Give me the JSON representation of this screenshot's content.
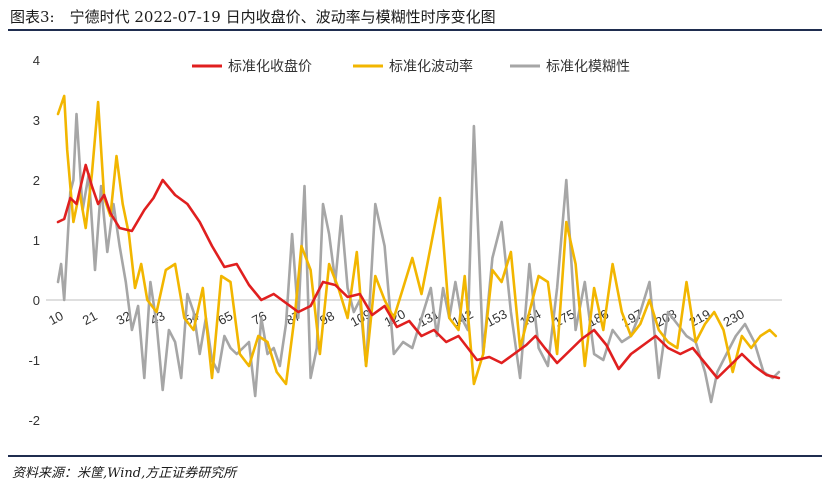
{
  "figure_title": "图表3:　宁德时代 2022-07-19 日内收盘价、波动率与模糊性时序变化图",
  "source": "资料来源：米筐,Wind,方正证券研究所",
  "chart_data": {
    "type": "line",
    "ylim": [
      -2,
      4
    ],
    "y_ticks": [
      -2,
      -1,
      0,
      1,
      2,
      3,
      4
    ],
    "x_start": 10,
    "x_end": 245,
    "x_ticks": [
      10,
      21,
      32,
      43,
      54,
      65,
      76,
      87,
      98,
      109,
      120,
      131,
      142,
      153,
      164,
      175,
      186,
      197,
      208,
      219,
      230
    ],
    "grid": false,
    "legend_position": "top",
    "series": [
      {
        "name": "标准化收盘价",
        "color": "#e01f1f",
        "keypoints": [
          [
            10,
            1.3
          ],
          [
            12,
            1.35
          ],
          [
            14,
            1.7
          ],
          [
            16,
            1.6
          ],
          [
            19,
            2.25
          ],
          [
            21,
            1.9
          ],
          [
            23,
            1.6
          ],
          [
            25,
            1.75
          ],
          [
            27,
            1.45
          ],
          [
            30,
            1.2
          ],
          [
            34,
            1.15
          ],
          [
            38,
            1.5
          ],
          [
            41,
            1.7
          ],
          [
            44,
            2.0
          ],
          [
            48,
            1.75
          ],
          [
            52,
            1.6
          ],
          [
            56,
            1.3
          ],
          [
            60,
            0.9
          ],
          [
            64,
            0.55
          ],
          [
            68,
            0.6
          ],
          [
            72,
            0.25
          ],
          [
            76,
            0.0
          ],
          [
            80,
            0.1
          ],
          [
            84,
            -0.05
          ],
          [
            88,
            -0.2
          ],
          [
            92,
            -0.1
          ],
          [
            96,
            0.3
          ],
          [
            100,
            0.25
          ],
          [
            104,
            0.05
          ],
          [
            108,
            0.1
          ],
          [
            112,
            -0.25
          ],
          [
            116,
            -0.1
          ],
          [
            120,
            -0.45
          ],
          [
            124,
            -0.35
          ],
          [
            128,
            -0.6
          ],
          [
            132,
            -0.5
          ],
          [
            136,
            -0.7
          ],
          [
            140,
            -0.6
          ],
          [
            143,
            -0.8
          ],
          [
            146,
            -1.0
          ],
          [
            150,
            -0.95
          ],
          [
            154,
            -1.05
          ],
          [
            158,
            -0.9
          ],
          [
            162,
            -0.75
          ],
          [
            165,
            -0.6
          ],
          [
            168,
            -0.8
          ],
          [
            172,
            -1.05
          ],
          [
            176,
            -0.85
          ],
          [
            180,
            -0.65
          ],
          [
            184,
            -0.5
          ],
          [
            188,
            -0.75
          ],
          [
            192,
            -1.15
          ],
          [
            196,
            -0.9
          ],
          [
            200,
            -0.75
          ],
          [
            204,
            -0.6
          ],
          [
            208,
            -0.8
          ],
          [
            212,
            -0.9
          ],
          [
            216,
            -0.8
          ],
          [
            220,
            -1.05
          ],
          [
            224,
            -1.3
          ],
          [
            228,
            -1.1
          ],
          [
            232,
            -0.9
          ],
          [
            236,
            -1.1
          ],
          [
            240,
            -1.25
          ],
          [
            244,
            -1.3
          ]
        ]
      },
      {
        "name": "标准化波动率",
        "color": "#f2b600",
        "keypoints": [
          [
            10,
            3.1
          ],
          [
            12,
            3.4
          ],
          [
            13,
            2.5
          ],
          [
            15,
            1.3
          ],
          [
            17,
            1.8
          ],
          [
            19,
            1.2
          ],
          [
            21,
            2.1
          ],
          [
            23,
            3.3
          ],
          [
            25,
            1.7
          ],
          [
            27,
            1.4
          ],
          [
            29,
            2.4
          ],
          [
            31,
            1.6
          ],
          [
            33,
            1.1
          ],
          [
            35,
            0.2
          ],
          [
            37,
            0.6
          ],
          [
            39,
            0.0
          ],
          [
            42,
            -0.2
          ],
          [
            45,
            0.5
          ],
          [
            48,
            0.6
          ],
          [
            51,
            -0.3
          ],
          [
            54,
            -0.5
          ],
          [
            57,
            0.2
          ],
          [
            60,
            -1.3
          ],
          [
            63,
            0.4
          ],
          [
            66,
            0.3
          ],
          [
            69,
            -0.9
          ],
          [
            72,
            -1.1
          ],
          [
            75,
            -0.6
          ],
          [
            78,
            -0.7
          ],
          [
            81,
            -1.2
          ],
          [
            84,
            -1.4
          ],
          [
            87,
            -0.2
          ],
          [
            89,
            0.9
          ],
          [
            92,
            0.5
          ],
          [
            95,
            -0.9
          ],
          [
            98,
            0.6
          ],
          [
            101,
            0.2
          ],
          [
            104,
            -0.3
          ],
          [
            107,
            0.8
          ],
          [
            110,
            -1.1
          ],
          [
            113,
            0.4
          ],
          [
            116,
            0.0
          ],
          [
            119,
            -0.3
          ],
          [
            122,
            0.2
          ],
          [
            125,
            0.7
          ],
          [
            128,
            0.1
          ],
          [
            131,
            0.9
          ],
          [
            134,
            1.7
          ],
          [
            137,
            -0.3
          ],
          [
            140,
            -0.5
          ],
          [
            142,
            0.4
          ],
          [
            145,
            -1.4
          ],
          [
            148,
            -0.9
          ],
          [
            151,
            0.5
          ],
          [
            154,
            0.3
          ],
          [
            157,
            0.8
          ],
          [
            160,
            -0.8
          ],
          [
            163,
            -0.2
          ],
          [
            166,
            0.4
          ],
          [
            169,
            0.3
          ],
          [
            172,
            -0.9
          ],
          [
            175,
            1.3
          ],
          [
            178,
            0.6
          ],
          [
            181,
            -1.1
          ],
          [
            184,
            0.2
          ],
          [
            187,
            -0.5
          ],
          [
            190,
            0.6
          ],
          [
            193,
            -0.2
          ],
          [
            196,
            -0.6
          ],
          [
            199,
            -0.4
          ],
          [
            202,
            0.0
          ],
          [
            205,
            -0.5
          ],
          [
            208,
            -0.7
          ],
          [
            211,
            -0.8
          ],
          [
            214,
            0.3
          ],
          [
            217,
            -0.7
          ],
          [
            220,
            -0.4
          ],
          [
            223,
            -0.2
          ],
          [
            226,
            -0.5
          ],
          [
            229,
            -1.2
          ],
          [
            232,
            -0.6
          ],
          [
            235,
            -0.8
          ],
          [
            238,
            -0.6
          ],
          [
            241,
            -0.5
          ],
          [
            243,
            -0.6
          ]
        ]
      },
      {
        "name": "标准化模糊性",
        "color": "#a6a6a6",
        "keypoints": [
          [
            10,
            0.3
          ],
          [
            11,
            0.6
          ],
          [
            12,
            0.0
          ],
          [
            14,
            1.8
          ],
          [
            15,
            2.0
          ],
          [
            16,
            3.1
          ],
          [
            18,
            1.5
          ],
          [
            20,
            2.1
          ],
          [
            22,
            0.5
          ],
          [
            24,
            1.9
          ],
          [
            26,
            0.8
          ],
          [
            28,
            1.6
          ],
          [
            30,
            0.9
          ],
          [
            32,
            0.3
          ],
          [
            34,
            -0.5
          ],
          [
            36,
            -0.1
          ],
          [
            38,
            -1.3
          ],
          [
            40,
            0.3
          ],
          [
            42,
            -0.4
          ],
          [
            44,
            -1.5
          ],
          [
            46,
            -0.5
          ],
          [
            48,
            -0.7
          ],
          [
            50,
            -1.3
          ],
          [
            52,
            0.1
          ],
          [
            54,
            -0.2
          ],
          [
            56,
            -0.9
          ],
          [
            58,
            -0.3
          ],
          [
            60,
            -1.0
          ],
          [
            62,
            -1.2
          ],
          [
            64,
            -0.6
          ],
          [
            66,
            -0.8
          ],
          [
            68,
            -0.9
          ],
          [
            70,
            -0.8
          ],
          [
            72,
            -0.7
          ],
          [
            74,
            -1.6
          ],
          [
            76,
            -0.3
          ],
          [
            78,
            -0.9
          ],
          [
            80,
            -0.8
          ],
          [
            82,
            -1.1
          ],
          [
            84,
            -0.4
          ],
          [
            86,
            1.1
          ],
          [
            88,
            -0.3
          ],
          [
            90,
            1.9
          ],
          [
            92,
            -1.3
          ],
          [
            94,
            -0.8
          ],
          [
            96,
            1.6
          ],
          [
            98,
            1.1
          ],
          [
            100,
            0.3
          ],
          [
            102,
            1.4
          ],
          [
            104,
            0.2
          ],
          [
            106,
            -0.2
          ],
          [
            108,
            0.0
          ],
          [
            110,
            -1.1
          ],
          [
            113,
            1.6
          ],
          [
            116,
            0.9
          ],
          [
            119,
            -0.9
          ],
          [
            122,
            -0.7
          ],
          [
            125,
            -0.8
          ],
          [
            128,
            -0.3
          ],
          [
            131,
            0.2
          ],
          [
            133,
            -0.6
          ],
          [
            135,
            0.2
          ],
          [
            137,
            -0.3
          ],
          [
            139,
            0.3
          ],
          [
            141,
            -0.3
          ],
          [
            143,
            -0.5
          ],
          [
            145,
            2.9
          ],
          [
            148,
            -0.9
          ],
          [
            151,
            0.7
          ],
          [
            154,
            1.3
          ],
          [
            157,
            -0.2
          ],
          [
            160,
            -1.3
          ],
          [
            163,
            0.6
          ],
          [
            166,
            -0.8
          ],
          [
            169,
            -1.1
          ],
          [
            172,
            0.2
          ],
          [
            175,
            2.0
          ],
          [
            178,
            -0.5
          ],
          [
            181,
            0.3
          ],
          [
            184,
            -0.9
          ],
          [
            187,
            -1.0
          ],
          [
            190,
            -0.5
          ],
          [
            193,
            -0.7
          ],
          [
            196,
            -0.6
          ],
          [
            199,
            -0.2
          ],
          [
            202,
            0.3
          ],
          [
            205,
            -1.3
          ],
          [
            208,
            -0.2
          ],
          [
            211,
            -0.4
          ],
          [
            214,
            -0.6
          ],
          [
            217,
            -0.7
          ],
          [
            220,
            -1.2
          ],
          [
            222,
            -1.7
          ],
          [
            224,
            -1.2
          ],
          [
            227,
            -0.9
          ],
          [
            230,
            -0.6
          ],
          [
            233,
            -0.4
          ],
          [
            236,
            -0.7
          ],
          [
            239,
            -1.2
          ],
          [
            242,
            -1.3
          ],
          [
            244,
            -1.2
          ]
        ]
      }
    ]
  }
}
